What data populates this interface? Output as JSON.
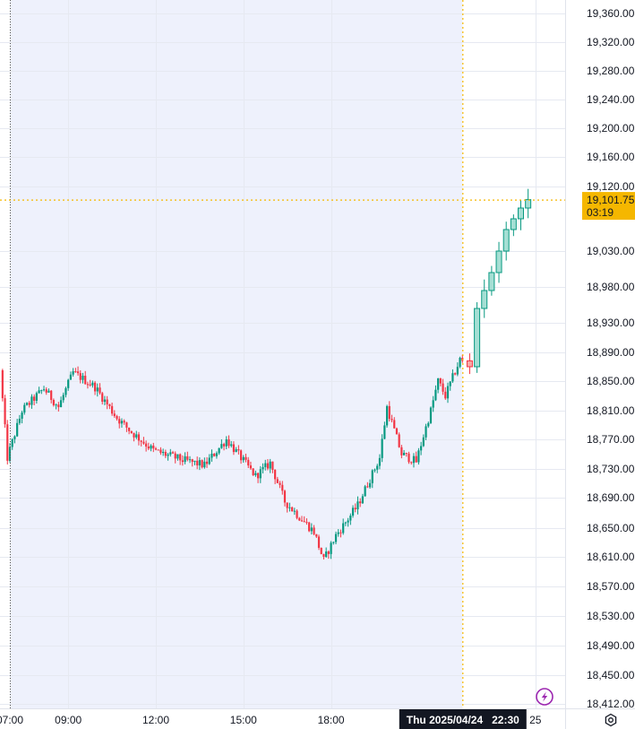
{
  "chart_data": {
    "type": "candlestick",
    "title": "",
    "xlabel": "",
    "ylabel": "",
    "y_ticks": [
      "19,360.00",
      "19,320.00",
      "19,280.00",
      "19,240.00",
      "19,200.00",
      "19,160.00",
      "19,120.00",
      "19,030.00",
      "18,980.00",
      "18,930.00",
      "18,890.00",
      "18,850.00",
      "18,810.00",
      "18,770.00",
      "18,730.00",
      "18,690.00",
      "18,650.00",
      "18,610.00",
      "18,570.00",
      "18,530.00",
      "18,490.00",
      "18,450.00",
      "18,412.00"
    ],
    "x_ticks": [
      {
        "label": "07:00",
        "hours": 7
      },
      {
        "label": "09:00",
        "hours": 9
      },
      {
        "label": "12:00",
        "hours": 12
      },
      {
        "label": "15:00",
        "hours": 15
      },
      {
        "label": "18:00",
        "hours": 18
      },
      {
        "label": "25",
        "hours": 25
      }
    ],
    "session_shading": {
      "from_hours": 7,
      "to_hours": 22.5,
      "color": "#eef1fc"
    },
    "up_color": "#089981",
    "down_color": "#f23645",
    "crosshair_color": "#f5b700",
    "crosshair": {
      "time_label": "Thu 2025/04/24   22:30",
      "time_hours": 22.5,
      "price": 19101.75,
      "price_label": "19,101.75",
      "countdown": "03:19"
    },
    "key_points": [
      {
        "time": "06:45",
        "hours": 6.75,
        "price": 18865
      },
      {
        "time": "07:00",
        "hours": 7.0,
        "price": 18745
      },
      {
        "time": "07:30",
        "hours": 7.5,
        "price": 18810
      },
      {
        "time": "08:15",
        "hours": 8.25,
        "price": 18840
      },
      {
        "time": "08:45",
        "hours": 8.75,
        "price": 18815
      },
      {
        "time": "09:15",
        "hours": 9.25,
        "price": 18862
      },
      {
        "time": "10:00",
        "hours": 10.0,
        "price": 18842
      },
      {
        "time": "10:45",
        "hours": 10.75,
        "price": 18800
      },
      {
        "time": "11:15",
        "hours": 11.25,
        "price": 18780
      },
      {
        "time": "12:00",
        "hours": 12.0,
        "price": 18755
      },
      {
        "time": "13:00",
        "hours": 13.0,
        "price": 18742
      },
      {
        "time": "13:45",
        "hours": 13.75,
        "price": 18735
      },
      {
        "time": "14:30",
        "hours": 14.5,
        "price": 18770
      },
      {
        "time": "15:00",
        "hours": 15.0,
        "price": 18745
      },
      {
        "time": "15:30",
        "hours": 15.5,
        "price": 18720
      },
      {
        "time": "16:00",
        "hours": 16.0,
        "price": 18738
      },
      {
        "time": "16:30",
        "hours": 16.5,
        "price": 18685
      },
      {
        "time": "17:00",
        "hours": 17.0,
        "price": 18665
      },
      {
        "time": "17:30",
        "hours": 17.5,
        "price": 18645
      },
      {
        "time": "17:50",
        "hours": 17.83,
        "price": 18605
      },
      {
        "time": "18:15",
        "hours": 18.25,
        "price": 18640
      },
      {
        "time": "19:00",
        "hours": 19.0,
        "price": 18680
      },
      {
        "time": "19:45",
        "hours": 19.75,
        "price": 18745
      },
      {
        "time": "20:00",
        "hours": 20.0,
        "price": 18815
      },
      {
        "time": "20:30",
        "hours": 20.5,
        "price": 18750
      },
      {
        "time": "21:00",
        "hours": 21.0,
        "price": 18740
      },
      {
        "time": "21:30",
        "hours": 21.5,
        "price": 18810
      },
      {
        "time": "21:45",
        "hours": 21.75,
        "price": 18850
      },
      {
        "time": "22:00",
        "hours": 22.0,
        "price": 18830
      },
      {
        "time": "22:30",
        "hours": 22.5,
        "price": 18880
      },
      {
        "time": "22:45",
        "hours": 22.75,
        "price": 18870
      },
      {
        "time": "23:00",
        "hours": 23.0,
        "price": 18950
      },
      {
        "time": "23:30",
        "hours": 23.5,
        "price": 19000
      },
      {
        "time": "24:00",
        "hours": 24.0,
        "price": 19060
      },
      {
        "time": "24:30",
        "hours": 24.5,
        "price": 19090
      },
      {
        "time": "24:45",
        "hours": 24.75,
        "price": 19101.75
      }
    ]
  },
  "icons": {
    "flash": "flash-icon",
    "settings": "settings-icon"
  }
}
